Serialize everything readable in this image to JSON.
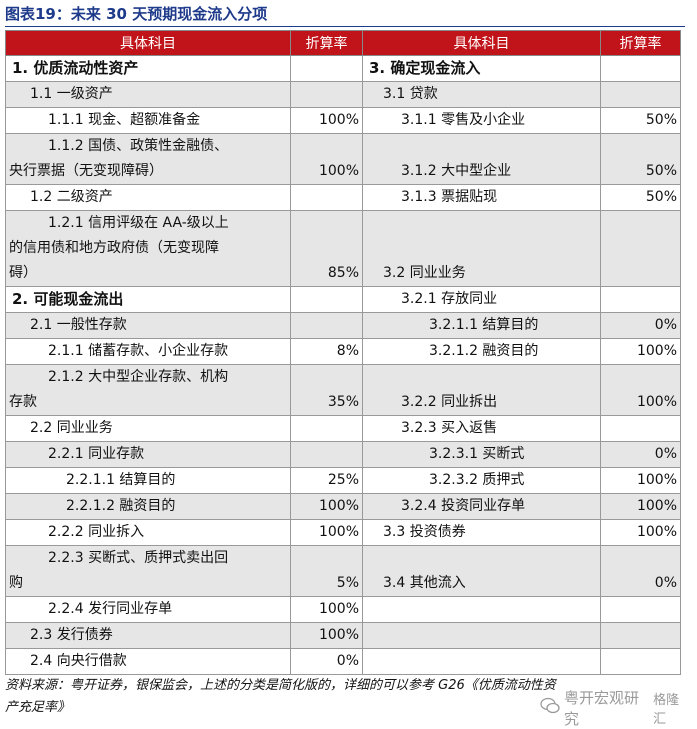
{
  "title": "图表19：未来 30 天预期现金流入分项",
  "headers": {
    "left_name": "具体科目",
    "left_rate": "折算率",
    "right_name": "具体科目",
    "right_rate": "折算率"
  },
  "rows": [
    {
      "l": "1. 优质流动性资产",
      "lr": "",
      "r": "3. 确定现金流入",
      "rr": ""
    },
    {
      "l": "1.1  一级资产",
      "lr": "",
      "r": "3.1  贷款",
      "rr": ""
    },
    {
      "l": "1.1.1  现金、超额准备金",
      "lr": "100%",
      "r": "3.1.1  零售及小企业",
      "rr": "50%"
    },
    {
      "l1": "1.1.2  国债、政策性金融债、",
      "l2": "央行票据（无变现障碍）",
      "lr": "100%",
      "r": "3.1.2  大中型企业",
      "rr": "50%"
    },
    {
      "l": "1.2  二级资产",
      "lr": "",
      "r": "3.1.3  票据贴现",
      "rr": "50%"
    },
    {
      "l1": "1.2.1  信用评级在 AA-级以上",
      "l2": "的信用债和地方政府债（无变现障",
      "l3": "碍）",
      "lr": "85%",
      "r": "3.2  同业业务",
      "rr": ""
    },
    {
      "l": "2. 可能现金流出",
      "lr": "",
      "r": "3.2.1  存放同业",
      "rr": ""
    },
    {
      "l": "2.1  一般性存款",
      "lr": "",
      "r": "3.2.1.1  结算目的",
      "rr": "0%"
    },
    {
      "l": "2.1.1  储蓄存款、小企业存款",
      "lr": "8%",
      "r": "3.2.1.2  融资目的",
      "rr": "100%"
    },
    {
      "l1": "2.1.2  大中型企业存款、机构",
      "l2": "存款",
      "lr": "35%",
      "r": "3.2.2  同业拆出",
      "rr": "100%"
    },
    {
      "l": "2.2  同业业务",
      "lr": "",
      "r": "3.2.3  买入返售",
      "rr": ""
    },
    {
      "l": "2.2.1  同业存款",
      "lr": "",
      "r": "3.2.3.1  买断式",
      "rr": "0%"
    },
    {
      "l": "2.2.1.1  结算目的",
      "lr": "25%",
      "r": "3.2.3.2  质押式",
      "rr": "100%"
    },
    {
      "l": "2.2.1.2  融资目的",
      "lr": "100%",
      "r": "3.2.4  投资同业存单",
      "rr": "100%"
    },
    {
      "l": "2.2.2  同业拆入",
      "lr": "100%",
      "r": "3.3  投资债券",
      "rr": "100%"
    },
    {
      "l1": "2.2.3  买断式、质押式卖出回",
      "l2": "购",
      "lr": "5%",
      "r": "3.4  其他流入",
      "rr": "0%"
    },
    {
      "l": "2.2.4  发行同业存单",
      "lr": "100%",
      "r": "",
      "rr": ""
    },
    {
      "l": "2.3  发行债券",
      "lr": "100%",
      "r": "",
      "rr": ""
    },
    {
      "l": "2.4  向央行借款",
      "lr": "0%",
      "r": "",
      "rr": ""
    }
  ],
  "note": "资料来源：粤开证券，银保监会，上述的分类是简化版的，详细的可以参考 G26《优质流动性资产充足率》",
  "watermark": "粤开宏观研究",
  "watermark2": "格隆汇"
}
